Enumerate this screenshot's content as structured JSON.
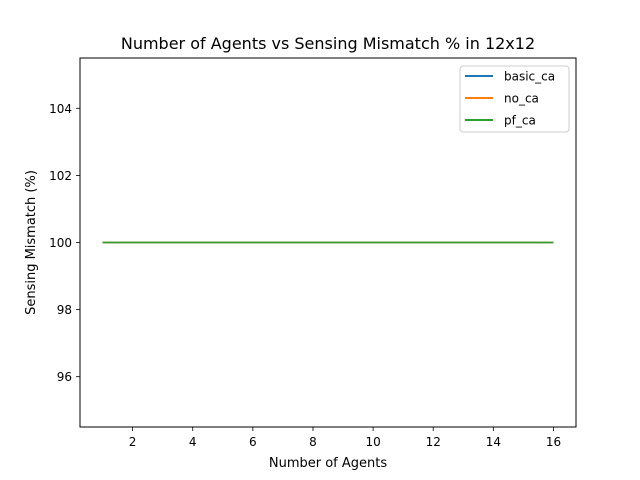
{
  "chart_data": {
    "type": "line",
    "title": "Number of Agents vs Sensing Mismatch % in 12x12",
    "xlabel": "Number of Agents",
    "ylabel": "Sensing Mismatch (%)",
    "xlim": [
      0.25,
      16.75
    ],
    "ylim": [
      94.5,
      105.5
    ],
    "xticks": [
      2,
      4,
      6,
      8,
      10,
      12,
      14,
      16
    ],
    "yticks": [
      96,
      98,
      100,
      102,
      104
    ],
    "grid": false,
    "legend_position": "top-right",
    "x": [
      1,
      2,
      3,
      4,
      5,
      6,
      7,
      8,
      9,
      10,
      11,
      12,
      13,
      14,
      15,
      16
    ],
    "series": [
      {
        "name": "basic_ca",
        "color": "#1f77b4",
        "values": [
          100,
          100,
          100,
          100,
          100,
          100,
          100,
          100,
          100,
          100,
          100,
          100,
          100,
          100,
          100,
          100
        ]
      },
      {
        "name": "no_ca",
        "color": "#ff7f0e",
        "values": [
          100,
          100,
          100,
          100,
          100,
          100,
          100,
          100,
          100,
          100,
          100,
          100,
          100,
          100,
          100,
          100
        ]
      },
      {
        "name": "pf_ca",
        "color": "#2ca02c",
        "values": [
          100,
          100,
          100,
          100,
          100,
          100,
          100,
          100,
          100,
          100,
          100,
          100,
          100,
          100,
          100,
          100
        ]
      }
    ]
  }
}
